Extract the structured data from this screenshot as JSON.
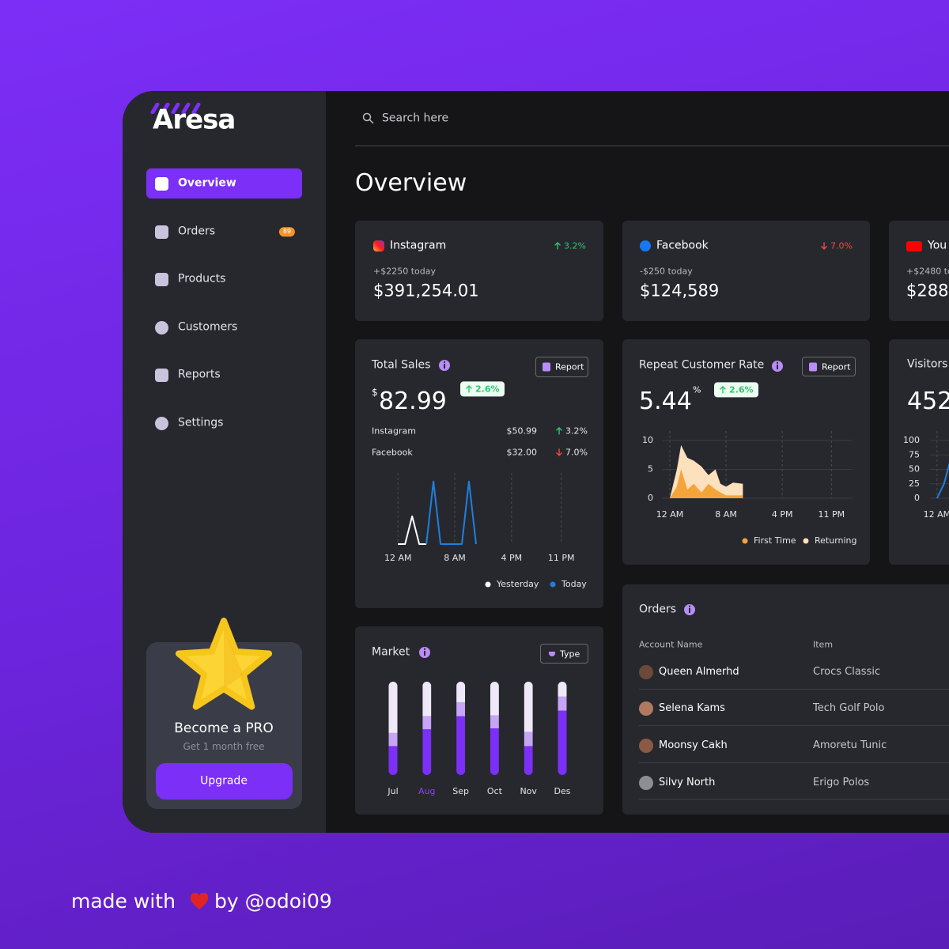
{
  "sidebar": {
    "brand": "Aresa",
    "nav": [
      {
        "label": "Overview",
        "active": true
      },
      {
        "label": "Orders",
        "badge": 89
      },
      {
        "label": "Products"
      },
      {
        "label": "Customers"
      },
      {
        "label": "Reports"
      },
      {
        "label": "Settings"
      }
    ],
    "promo": {
      "title": "Become a PRO",
      "subtitle": "Get 1 month free",
      "button": "Upgrade"
    }
  },
  "header": {
    "search_placeholder": "Search here",
    "title": "Overview"
  },
  "social": [
    {
      "name": "Instagram",
      "change": "3.2%",
      "trend": "up",
      "today": "+$2250 today",
      "value": "$391,254.01"
    },
    {
      "name": "Facebook",
      "change": "7.0%",
      "trend": "down",
      "today": "-$250 today",
      "value": "$124,589"
    },
    {
      "name": "You",
      "today": "+$2480 to",
      "value": "$288"
    }
  ],
  "total_sales": {
    "title": "Total Sales",
    "button": "Report",
    "currency": "$",
    "value": 82.99,
    "change": "2.6%",
    "trend": "up",
    "breakdown": [
      {
        "name": "Instagram",
        "amount": "$50.99",
        "change": "3.2%",
        "trend": "up"
      },
      {
        "name": "Facebook",
        "amount": "$32.00",
        "change": "7.0%",
        "trend": "down"
      }
    ],
    "chart": {
      "type": "line",
      "grid": true,
      "x": [
        0,
        1,
        2,
        3,
        4,
        5,
        6,
        9,
        10,
        11
      ],
      "xlim": [
        -3.7,
        26.6
      ],
      "xticks": [
        {
          "value": 0,
          "label": "12 AM"
        },
        {
          "value": 8,
          "label": "8 AM"
        },
        {
          "value": 16,
          "label": "4 PM"
        },
        {
          "value": 23,
          "label": "11 PM"
        }
      ],
      "ylim": [
        0,
        10
      ],
      "series": [
        {
          "name": "Yesterday",
          "color": "#ffffff",
          "values": [
            0,
            0,
            4,
            0,
            0,
            null,
            null,
            null,
            null,
            null
          ]
        },
        {
          "name": "Today",
          "color": "#1f7fe0",
          "values": [
            null,
            null,
            null,
            null,
            0,
            9,
            0,
            0,
            9,
            0
          ]
        }
      ]
    }
  },
  "repeat_rate": {
    "title": "Repeat Customer Rate",
    "button": "Report",
    "value": 5.44,
    "unit": "%",
    "change": "2.6%",
    "trend": "up",
    "chart": {
      "type": "area",
      "grid": true,
      "x": [
        0,
        1,
        1.6,
        2.5,
        3.4,
        4.5,
        5.5,
        6.5,
        7.2,
        8,
        9,
        10.4
      ],
      "xlim": [
        -3.6,
        26
      ],
      "xticks": [
        {
          "value": 0,
          "label": "12 AM"
        },
        {
          "value": 8,
          "label": "8 AM"
        },
        {
          "value": 16,
          "label": "4 PM"
        },
        {
          "value": 23,
          "label": "11 PM"
        }
      ],
      "ylim": [
        0,
        10
      ],
      "yticks": [
        0,
        5,
        10
      ],
      "series": [
        {
          "name": "First Time",
          "color": "#f5a33b",
          "values": [
            0,
            2,
            5,
            1.5,
            2.5,
            1,
            2.5,
            1.5,
            1,
            0.5,
            0.5,
            0.5
          ]
        },
        {
          "name": "Returning",
          "color": "#fde0bc",
          "values": [
            0,
            5,
            9.2,
            7,
            6.5,
            5.5,
            4,
            5,
            2.5,
            2,
            2.7,
            2.5
          ]
        }
      ]
    }
  },
  "visitors": {
    "title": "Visitors",
    "value": 452,
    "chart": {
      "type": "line",
      "grid": true,
      "x": [
        0,
        1,
        2
      ],
      "xlim": [
        -1,
        26
      ],
      "xticks": [
        {
          "value": 0,
          "label": "12 AM"
        }
      ],
      "ylim": [
        0,
        100
      ],
      "yticks": [
        0,
        25,
        50,
        75,
        100
      ],
      "series": [
        {
          "color": "#1f7fe0",
          "values": [
            0,
            25,
            70
          ]
        }
      ]
    }
  },
  "market": {
    "title": "Market",
    "button": "Type",
    "chart": {
      "type": "bar",
      "stacked": true,
      "categories": [
        "Jul",
        "Aug",
        "Sep",
        "Oct",
        "Nov",
        "Des"
      ],
      "highlight": 1,
      "ylim": [
        0,
        100
      ],
      "series": [
        {
          "color": "#7b2ff7",
          "values": [
            31,
            49,
            63,
            50,
            31,
            69
          ]
        },
        {
          "color": "#c6a4f6",
          "values": [
            14,
            14,
            15,
            14,
            15,
            15
          ]
        },
        {
          "color": "#efe8f8",
          "values": [
            55,
            37,
            22,
            36,
            54,
            16
          ]
        }
      ]
    }
  },
  "orders": {
    "title": "Orders",
    "columns": [
      "Account Name",
      "Item"
    ],
    "rows": [
      [
        "Queen Almerhd",
        "Crocs Classic"
      ],
      [
        "Selena Kams",
        "Tech Golf Polo"
      ],
      [
        "Moonsy Cakh",
        "Amoretu Tunic"
      ],
      [
        "Silvy North",
        "Erigo Polos"
      ]
    ]
  },
  "footer": {
    "before": "made with",
    "after": "by @odoi09"
  }
}
